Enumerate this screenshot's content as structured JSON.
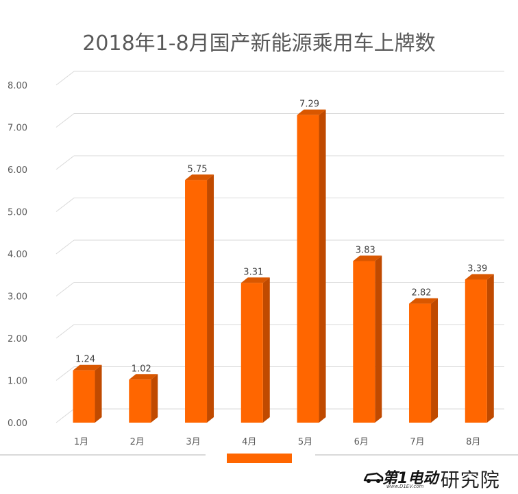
{
  "colors": {
    "bar_front": "#ff6600",
    "bar_side": "#c04a00",
    "bar_top": "#d95700",
    "grid": "#d9d9d9",
    "axis_text": "#595959"
  },
  "chart_data": {
    "type": "bar",
    "title": "2018年1-8月国产新能源乘用车上牌数",
    "categories": [
      "1月",
      "2月",
      "3月",
      "4月",
      "5月",
      "6月",
      "7月",
      "8月"
    ],
    "values": [
      1.24,
      1.02,
      5.75,
      3.31,
      7.29,
      3.83,
      2.82,
      3.39
    ],
    "value_labels": [
      "1.24",
      "1.02",
      "5.75",
      "3.31",
      "7.29",
      "3.83",
      "2.82",
      "3.39"
    ],
    "ylim": [
      0,
      8
    ],
    "yticks": [
      "0.00",
      "1.00",
      "2.00",
      "3.00",
      "4.00",
      "5.00",
      "6.00",
      "7.00",
      "8.00"
    ],
    "grid": true,
    "style": "3d-column",
    "legend": "bottom-center"
  },
  "watermark": {
    "brand": "第1电动",
    "suffix": "· 研究院",
    "url": "www.D1EV.com"
  }
}
